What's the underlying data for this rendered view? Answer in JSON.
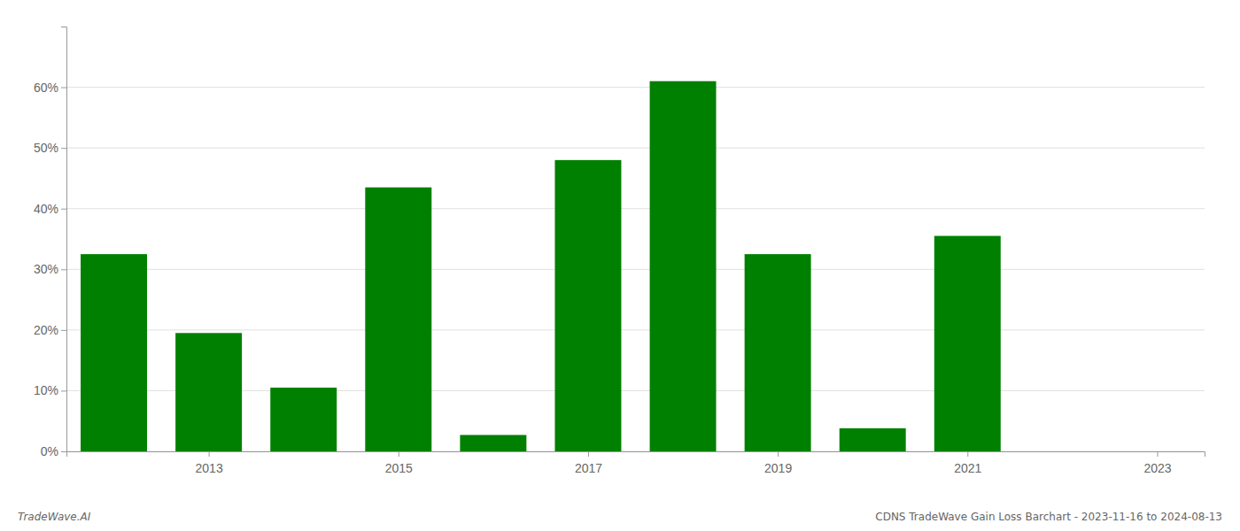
{
  "chart_data": {
    "type": "bar",
    "x": [
      2012,
      2013,
      2014,
      2015,
      2016,
      2017,
      2018,
      2019,
      2020,
      2021,
      2022
    ],
    "values": [
      32.5,
      19.5,
      10.5,
      43.5,
      2.7,
      48.0,
      61.0,
      32.5,
      3.8,
      35.5,
      0.0
    ],
    "color": "#008000",
    "xlim": [
      2011.5,
      2023.5
    ],
    "xticks": [
      2013,
      2015,
      2017,
      2019,
      2021,
      2023
    ],
    "ylim": [
      0,
      70
    ],
    "yticks": [
      {
        "value": 0,
        "label": "0%"
      },
      {
        "value": 10,
        "label": "10%"
      },
      {
        "value": 20,
        "label": "20%"
      },
      {
        "value": 30,
        "label": "30%"
      },
      {
        "value": 40,
        "label": "40%"
      },
      {
        "value": 50,
        "label": "50%"
      },
      {
        "value": 60,
        "label": "60%"
      }
    ],
    "grid": true,
    "annotations": [
      "TradeWave.AI",
      "CDNS TradeWave Gain Loss Barchart - 2023-11-16 to 2024-08-13"
    ]
  }
}
